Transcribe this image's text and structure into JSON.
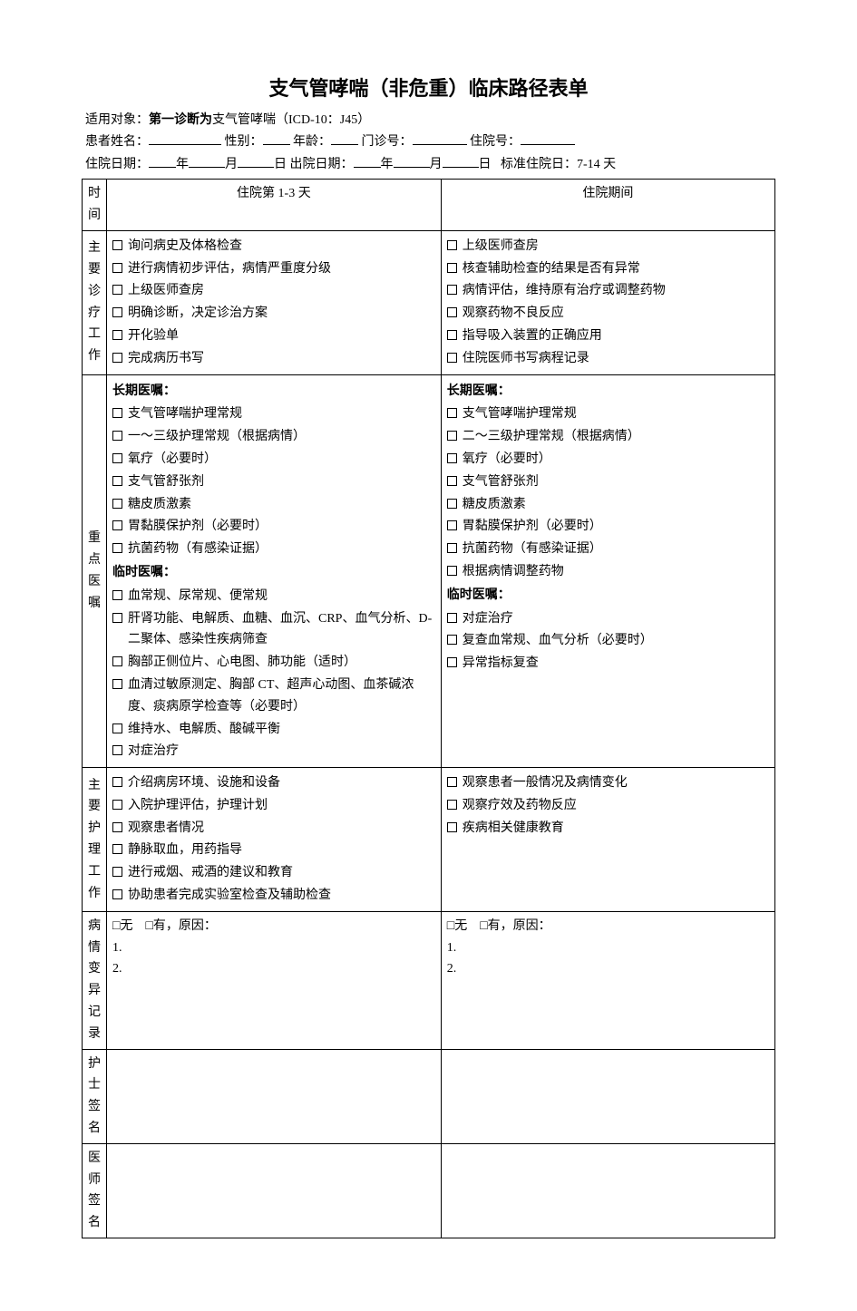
{
  "title": "支气管哮喘（非危重）临床路径表单",
  "header": {
    "line1_prefix": "适用对象：",
    "line1_bold": "第一诊断为",
    "line1_rest": "支气管哮喘（ICD-10：J45）",
    "l2_name": "患者姓名：",
    "l2_sex": "性别：",
    "l2_age": "年龄：",
    "l2_outpatient": "门诊号：",
    "l2_inpatient": "住院号：",
    "l3_admit": "住院日期：",
    "l3_discharge": "出院日期：",
    "l3_year": "年",
    "l3_month": "月",
    "l3_day": "日",
    "l3_standard": "标准住院日：7-14 天"
  },
  "table": {
    "h_time": "时间",
    "h_col1": "住院第 1-3 天",
    "h_col2": "住院期间",
    "row1_label": [
      "主",
      "要",
      "诊",
      "疗",
      "工",
      "作"
    ],
    "row1_col1": [
      "询问病史及体格检查",
      "进行病情初步评估，病情严重度分级",
      "上级医师查房",
      "明确诊断，决定诊治方案",
      "开化验单",
      "完成病历书写"
    ],
    "row1_col2": [
      "上级医师查房",
      "核查辅助检查的结果是否有异常",
      "病情评估，维持原有治疗或调整药物",
      "观察药物不良反应",
      "指导吸入装置的正确应用",
      "住院医师书写病程记录"
    ],
    "row2_label": [
      "重",
      "点",
      "医",
      "嘱"
    ],
    "row2_col1_long_title": "长期医嘱：",
    "row2_col1_long": [
      "支气管哮喘护理常规",
      "一～三级护理常规（根据病情）",
      "氧疗（必要时）",
      "支气管舒张剂",
      "糖皮质激素",
      "胃黏膜保护剂（必要时）",
      "抗菌药物（有感染证据）"
    ],
    "row2_col1_temp_title": "临时医嘱：",
    "row2_col1_temp": [
      "血常规、尿常规、便常规",
      "肝肾功能、电解质、血糖、血沉、CRP、血气分析、D-二聚体、感染性疾病筛查",
      "胸部正侧位片、心电图、肺功能（适时）",
      "血清过敏原测定、胸部 CT、超声心动图、血茶碱浓度、痰病原学检查等（必要时）",
      "维持水、电解质、酸碱平衡",
      "对症治疗"
    ],
    "row2_col2_long_title": "长期医嘱：",
    "row2_col2_long": [
      "支气管哮喘护理常规",
      "二～三级护理常规（根据病情）",
      "氧疗（必要时）",
      "支气管舒张剂",
      "糖皮质激素",
      "胃黏膜保护剂（必要时）",
      "抗菌药物（有感染证据）",
      "根据病情调整药物"
    ],
    "row2_col2_temp_title": "临时医嘱：",
    "row2_col2_temp": [
      "对症治疗",
      "复查血常规、血气分析（必要时）",
      "异常指标复查"
    ],
    "row3_label": [
      "主要",
      "护理",
      "工作"
    ],
    "row3_col1": [
      "介绍病房环境、设施和设备",
      "入院护理评估，护理计划",
      "观察患者情况",
      "静脉取血，用药指导",
      "进行戒烟、戒酒的建议和教育",
      "协助患者完成实验室检查及辅助检查"
    ],
    "row3_col2": [
      "观察患者一般情况及病情变化",
      "观察疗效及药物反应",
      "疾病相关健康教育"
    ],
    "row4_label": [
      "病情",
      "变异",
      "记录"
    ],
    "row4_text": "□无　□有，原因：",
    "row4_1": "1.",
    "row4_2": "2.",
    "row5_label": [
      "护士",
      "签名"
    ],
    "row6_label": [
      "医师",
      "签名"
    ]
  }
}
